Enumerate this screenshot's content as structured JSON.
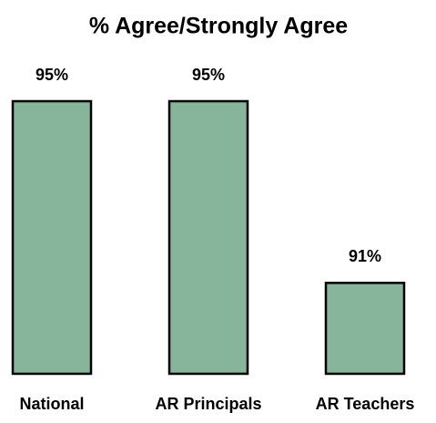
{
  "chart_data": {
    "type": "bar",
    "title": "% Agree/Strongly Agree",
    "categories": [
      "National",
      "AR Principals",
      "AR Teachers"
    ],
    "values": [
      95,
      95,
      91
    ],
    "value_labels": [
      "95%",
      "95%",
      "91%"
    ],
    "color": "#86b59b",
    "ylim": [
      89,
      95
    ]
  }
}
